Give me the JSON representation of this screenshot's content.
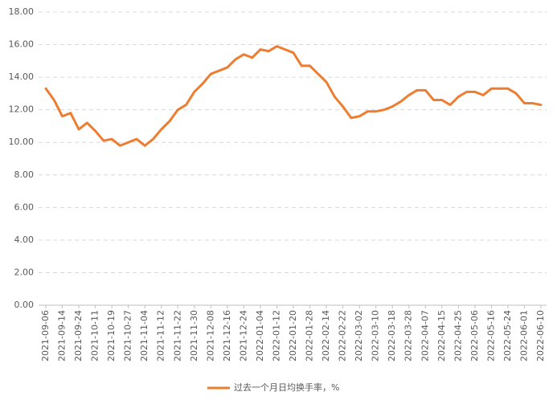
{
  "chart_data": {
    "type": "line",
    "categories": [
      "2021-09-06",
      null,
      "2021-09-14",
      null,
      "2021-09-24",
      null,
      "2021-10-11",
      null,
      "2021-10-19",
      null,
      "2021-10-27",
      null,
      "2021-11-04",
      null,
      "2021-11-12",
      null,
      "2021-11-22",
      null,
      "2021-11-30",
      null,
      "2021-12-08",
      null,
      "2021-12-16",
      null,
      "2021-12-24",
      null,
      "2022-01-04",
      null,
      "2022-01-12",
      null,
      "2022-01-20",
      null,
      "2022-01-28",
      null,
      "2022-02-14",
      null,
      "2022-02-22",
      null,
      "2022-03-02",
      null,
      "2022-03-10",
      null,
      "2022-03-18",
      null,
      "2022-03-28",
      null,
      "2022-04-07",
      null,
      "2022-04-15",
      null,
      "2022-04-25",
      null,
      "2022-05-06",
      null,
      "2022-05-16",
      null,
      "2022-05-24",
      null,
      "2022-06-01",
      null,
      "2022-06-10"
    ],
    "series": [
      {
        "name": "过去一个月日均换手率，%",
        "color": "#ed7d31",
        "values": [
          13.3,
          12.6,
          11.6,
          11.8,
          10.8,
          11.2,
          10.7,
          10.1,
          10.2,
          9.8,
          10.0,
          10.2,
          9.8,
          10.2,
          10.8,
          11.3,
          12.0,
          12.3,
          13.1,
          13.6,
          14.2,
          14.4,
          14.6,
          15.1,
          15.4,
          15.2,
          15.7,
          15.6,
          15.9,
          15.7,
          15.5,
          14.7,
          14.7,
          14.2,
          13.7,
          12.8,
          12.2,
          11.5,
          11.6,
          11.9,
          11.9,
          12.0,
          12.2,
          12.5,
          12.9,
          13.2,
          13.2,
          12.6,
          12.6,
          12.3,
          12.8,
          13.1,
          13.1,
          12.9,
          13.3,
          13.3,
          13.3,
          13.0,
          12.4,
          12.4,
          12.3
        ]
      }
    ],
    "ylim": [
      0,
      18
    ],
    "yticks": [
      {
        "value": 0,
        "label": "0.00"
      },
      {
        "value": 2,
        "label": "2.00"
      },
      {
        "value": 4,
        "label": "4.00"
      },
      {
        "value": 6,
        "label": "6.00"
      },
      {
        "value": 8,
        "label": "8.00"
      },
      {
        "value": 10,
        "label": "10.00"
      },
      {
        "value": 12,
        "label": "12.00"
      },
      {
        "value": 14,
        "label": "14.00"
      },
      {
        "value": 16,
        "label": "16.00"
      },
      {
        "value": 18,
        "label": "18.00"
      }
    ],
    "grid": true,
    "legend": "bottom"
  }
}
